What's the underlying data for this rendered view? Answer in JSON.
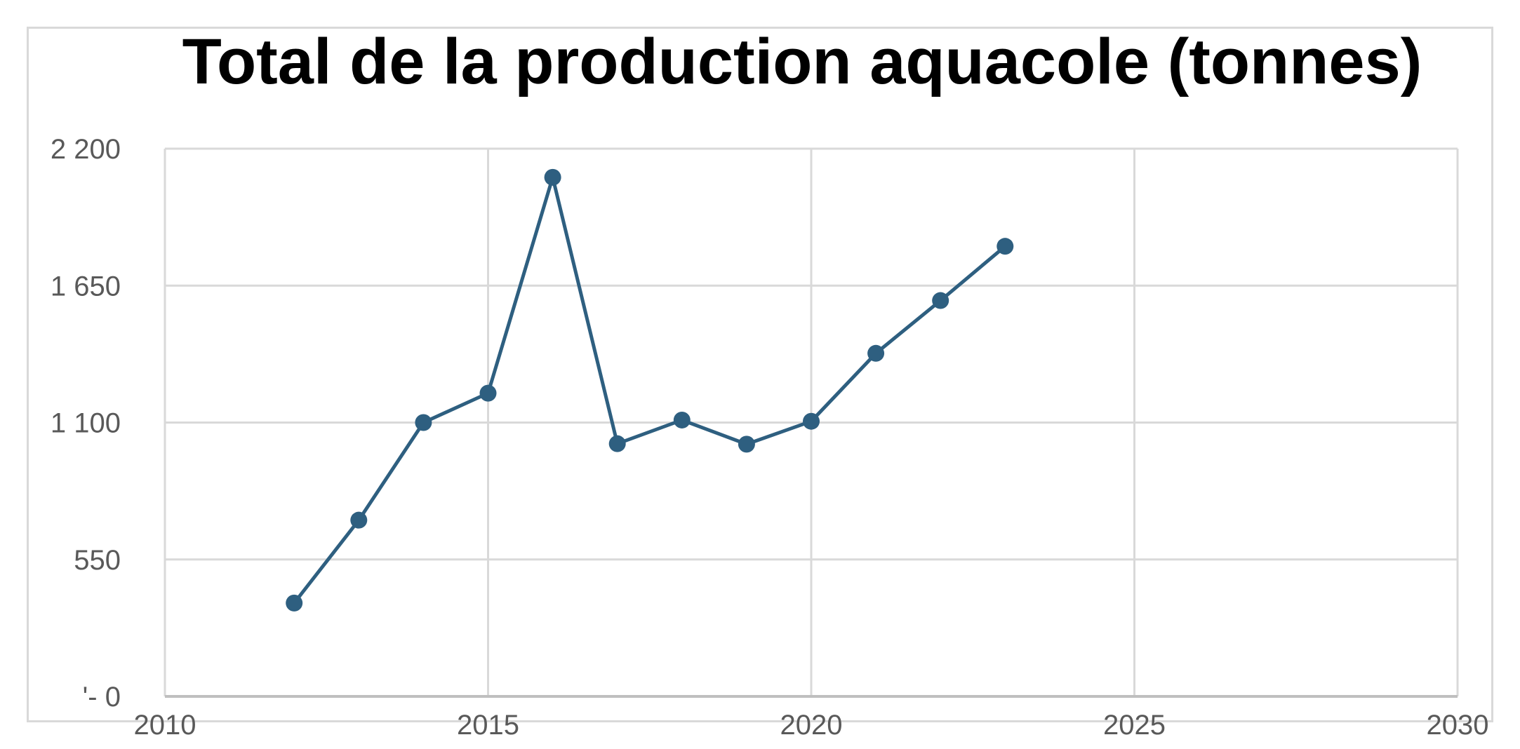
{
  "chart_data": {
    "type": "line",
    "title": "Total de la production aquacole (tonnes)",
    "xlabel": "",
    "ylabel": "",
    "xlim": [
      2010,
      2030
    ],
    "ylim": [
      0,
      2200
    ],
    "x_ticks": [
      2010,
      2015,
      2020,
      2025,
      2030
    ],
    "x_tick_labels": [
      "2010",
      "2015",
      "2020",
      "2025",
      "2030"
    ],
    "y_ticks": [
      0,
      550,
      1100,
      1650,
      2200
    ],
    "y_tick_labels": [
      "'- 0",
      "550",
      "1 100",
      "1 650",
      "2 200"
    ],
    "grid": true,
    "legend": "none",
    "series": [
      {
        "color": "#2e5f80",
        "x": [
          2012,
          2013,
          2014,
          2015,
          2016,
          2017,
          2018,
          2019,
          2020,
          2021,
          2022,
          2023
        ],
        "y": [
          375,
          708,
          1100,
          1218,
          2085,
          1015,
          1110,
          1013,
          1105,
          1378,
          1590,
          1808
        ]
      }
    ]
  }
}
